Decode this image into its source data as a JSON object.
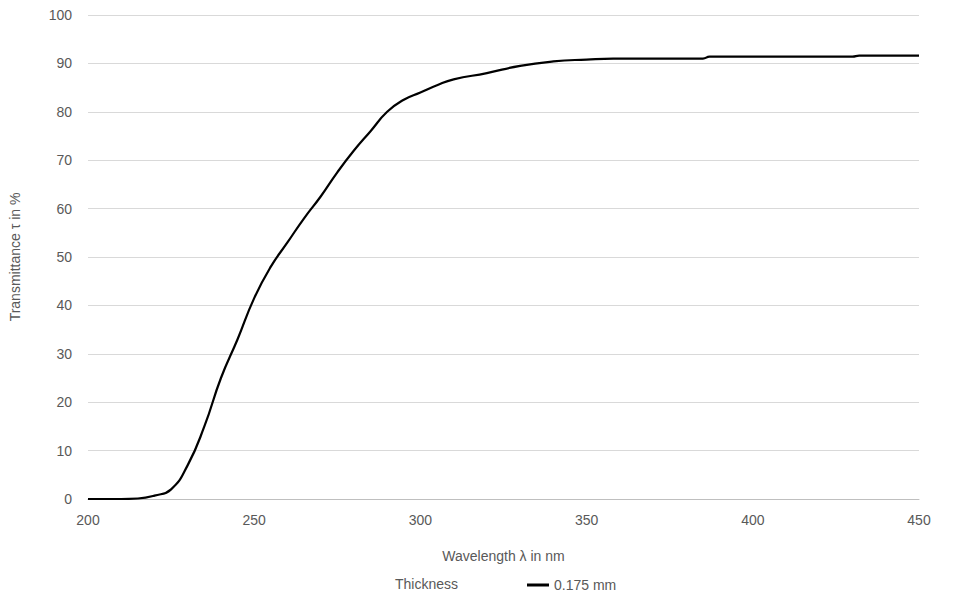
{
  "chart_data": {
    "type": "line",
    "x_label": "Wavelength λ in nm",
    "y_label": "Transmittance τ in %",
    "legend_title": "Thickness",
    "legend": "bottom",
    "grid": true,
    "xlim": [
      200,
      450
    ],
    "xticks": [
      200,
      250,
      300,
      350,
      400,
      450
    ],
    "ylim": [
      0,
      100
    ],
    "yticks": [
      0,
      10,
      20,
      30,
      40,
      50,
      60,
      70,
      80,
      90,
      100
    ],
    "x": [
      200,
      210,
      215,
      220,
      225,
      230,
      235,
      240,
      245,
      250,
      255,
      260,
      265,
      270,
      275,
      280,
      285,
      290,
      295,
      300,
      305,
      310,
      320,
      330,
      340,
      350,
      358,
      385,
      387,
      430,
      432,
      450
    ],
    "series": [
      {
        "name": "0.175 mm",
        "color": "#000000",
        "line_style": "solid",
        "values": [
          0,
          0,
          0.1,
          0.7,
          2,
          7,
          15,
          25,
          33,
          41.5,
          48,
          53,
          58,
          62.5,
          67.5,
          72,
          76,
          80,
          82.5,
          84,
          85.5,
          86.7,
          88,
          89.5,
          90.4,
          90.8,
          91,
          91,
          91.4,
          91.4,
          91.6,
          91.6
        ]
      }
    ]
  }
}
